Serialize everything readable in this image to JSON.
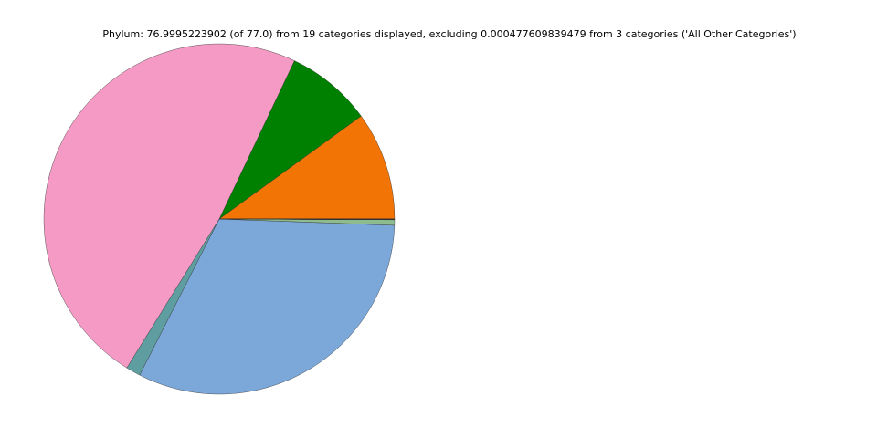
{
  "chart_data": {
    "type": "pie",
    "title": "Phylum: 76.9995223902 (of 77.0) from 19 categories displayed, excluding 0.000477609839479 from 3 categories ('All Other Categories')",
    "values": [
      7.7,
      6.12,
      37.13,
      1.03,
      24.58,
      0.39,
      0.004,
      0.004,
      0.004,
      0.004,
      0.004,
      0.004,
      0.004,
      0.004,
      0.004,
      0.004,
      0.004,
      0.004,
      0.004
    ],
    "colors": [
      "#f27405",
      "#008000",
      "#f49ac4",
      "#5f9ea0",
      "#7ba7d9",
      "#8fbc8f",
      "#4a3b2a",
      "#2f4f4f",
      "#8b4513",
      "#556b2f",
      "#483d8b",
      "#800000",
      "#2e8b57",
      "#4b0082",
      "#696969",
      "#8b008b",
      "#006400",
      "#b8860b",
      "#000080"
    ]
  }
}
